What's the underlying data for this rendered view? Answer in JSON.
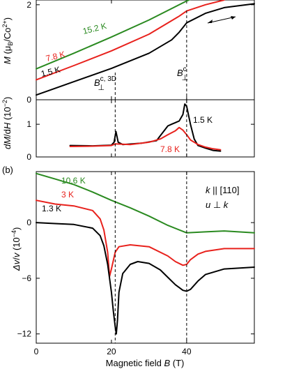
{
  "colors": {
    "black": "#000000",
    "red": "#e8211c",
    "green": "#2a8a20"
  },
  "chart_data": [
    {
      "id": "top",
      "type": "line",
      "ylabel_main": "M",
      "ylabel_unit": "(μB/Co2+)",
      "ylim": [
        0,
        2.1
      ],
      "xlim": [
        0,
        58
      ],
      "yticks": [
        0,
        2
      ],
      "series": [
        {
          "name": "15.2 K",
          "color": "#2a8a20",
          "x": [
            0,
            10,
            20,
            30,
            40,
            45
          ],
          "y": [
            0.65,
            0.98,
            1.32,
            1.68,
            2.08,
            2.25
          ]
        },
        {
          "name": "7.8 K",
          "color": "#e8211c",
          "x": [
            0,
            10,
            20,
            30,
            38,
            40,
            45,
            50
          ],
          "y": [
            0.42,
            0.72,
            1.03,
            1.38,
            1.76,
            1.87,
            2.0,
            2.1
          ]
        },
        {
          "name": "1.5 K",
          "color": "#000000",
          "x": [
            0,
            10,
            20,
            30,
            36,
            38,
            40,
            45,
            50,
            58
          ],
          "y": [
            0.1,
            0.38,
            0.66,
            0.98,
            1.26,
            1.42,
            1.62,
            1.82,
            1.94,
            2.02
          ]
        }
      ],
      "annotations": [
        {
          "text": "B",
          "sub": "⊥",
          "sup": "c, 3D",
          "x": 21
        },
        {
          "text": "B",
          "sub": "⊥",
          "sup": "c",
          "x": 40
        }
      ]
    },
    {
      "id": "middle",
      "type": "line",
      "ylabel": "dM/dH (10⁻²)",
      "ylim": [
        0,
        1.75
      ],
      "xlim": [
        0,
        58
      ],
      "yticks": [
        0,
        1
      ],
      "series": [
        {
          "name": "1.5 K",
          "color": "#000000",
          "x": [
            9,
            15,
            20,
            20.7,
            21.2,
            21.8,
            23,
            28,
            32,
            33,
            35,
            36,
            37,
            38,
            39,
            39.5,
            40,
            41,
            42,
            43,
            45,
            47,
            49
          ],
          "y": [
            0.35,
            0.34,
            0.36,
            0.45,
            0.78,
            0.45,
            0.38,
            0.42,
            0.5,
            0.65,
            0.95,
            1.0,
            1.05,
            1.1,
            1.3,
            1.62,
            1.55,
            1.0,
            0.55,
            0.35,
            0.27,
            0.2,
            0.18
          ]
        },
        {
          "name": "7.8 K",
          "color": "#e8211c",
          "x": [
            9,
            15,
            20,
            21,
            25,
            30,
            33,
            35,
            37,
            38,
            39,
            40,
            41,
            43,
            45,
            47,
            49
          ],
          "y": [
            0.32,
            0.33,
            0.35,
            0.4,
            0.38,
            0.45,
            0.55,
            0.68,
            0.8,
            0.9,
            0.82,
            0.68,
            0.52,
            0.38,
            0.3,
            0.25,
            0.22
          ]
        }
      ]
    },
    {
      "id": "bottom",
      "type": "line",
      "panel_label": "(b)",
      "ylabel": "Δv/v (10⁻⁴)",
      "xlabel": "Magnetic field B (T)",
      "ylim": [
        -13,
        5.5
      ],
      "xlim": [
        0,
        58
      ],
      "yticks": [
        -12,
        -6,
        0
      ],
      "xticks": [
        0,
        20,
        40
      ],
      "series": [
        {
          "name": "10.6 K",
          "color": "#2a8a20",
          "x": [
            0,
            5,
            10,
            15,
            20,
            25,
            30,
            35,
            40,
            45,
            50,
            58
          ],
          "y": [
            5.3,
            4.7,
            4.1,
            3.3,
            2.4,
            1.6,
            0.7,
            -0.3,
            -1.1,
            -1.0,
            -0.9,
            -1.1
          ]
        },
        {
          "name": "3 K",
          "color": "#e8211c",
          "x": [
            0,
            5,
            10,
            15,
            17,
            18,
            19,
            19.5,
            20,
            21,
            22,
            25,
            30,
            35,
            37,
            39,
            40,
            41,
            43,
            45,
            50,
            58
          ],
          "y": [
            2.4,
            2.0,
            1.8,
            1.3,
            0.4,
            -0.8,
            -3.2,
            -5.8,
            -5.0,
            -3.2,
            -2.6,
            -2.4,
            -2.6,
            -3.6,
            -4.2,
            -4.6,
            -4.5,
            -4.0,
            -3.4,
            -3.1,
            -2.8,
            -2.8
          ]
        },
        {
          "name": "1.3 K",
          "color": "#000000",
          "x": [
            0,
            5,
            10,
            15,
            17,
            18,
            19,
            20,
            20.5,
            21,
            21.3,
            21.6,
            22,
            23,
            25,
            27,
            30,
            33,
            35,
            37,
            39,
            40,
            41,
            43,
            45,
            50,
            58
          ],
          "y": [
            0,
            -0.1,
            -0.2,
            -0.6,
            -1.4,
            -2.5,
            -4.5,
            -7.5,
            -9.5,
            -11.2,
            -12.0,
            -10.5,
            -7.5,
            -5.5,
            -4.5,
            -4.2,
            -4.4,
            -5.1,
            -5.9,
            -6.7,
            -7.3,
            -7.4,
            -7.2,
            -6.3,
            -5.6,
            -5.0,
            -4.8
          ]
        }
      ],
      "legend_text": [
        "k || [110]",
        "u ⊥ k"
      ]
    }
  ]
}
